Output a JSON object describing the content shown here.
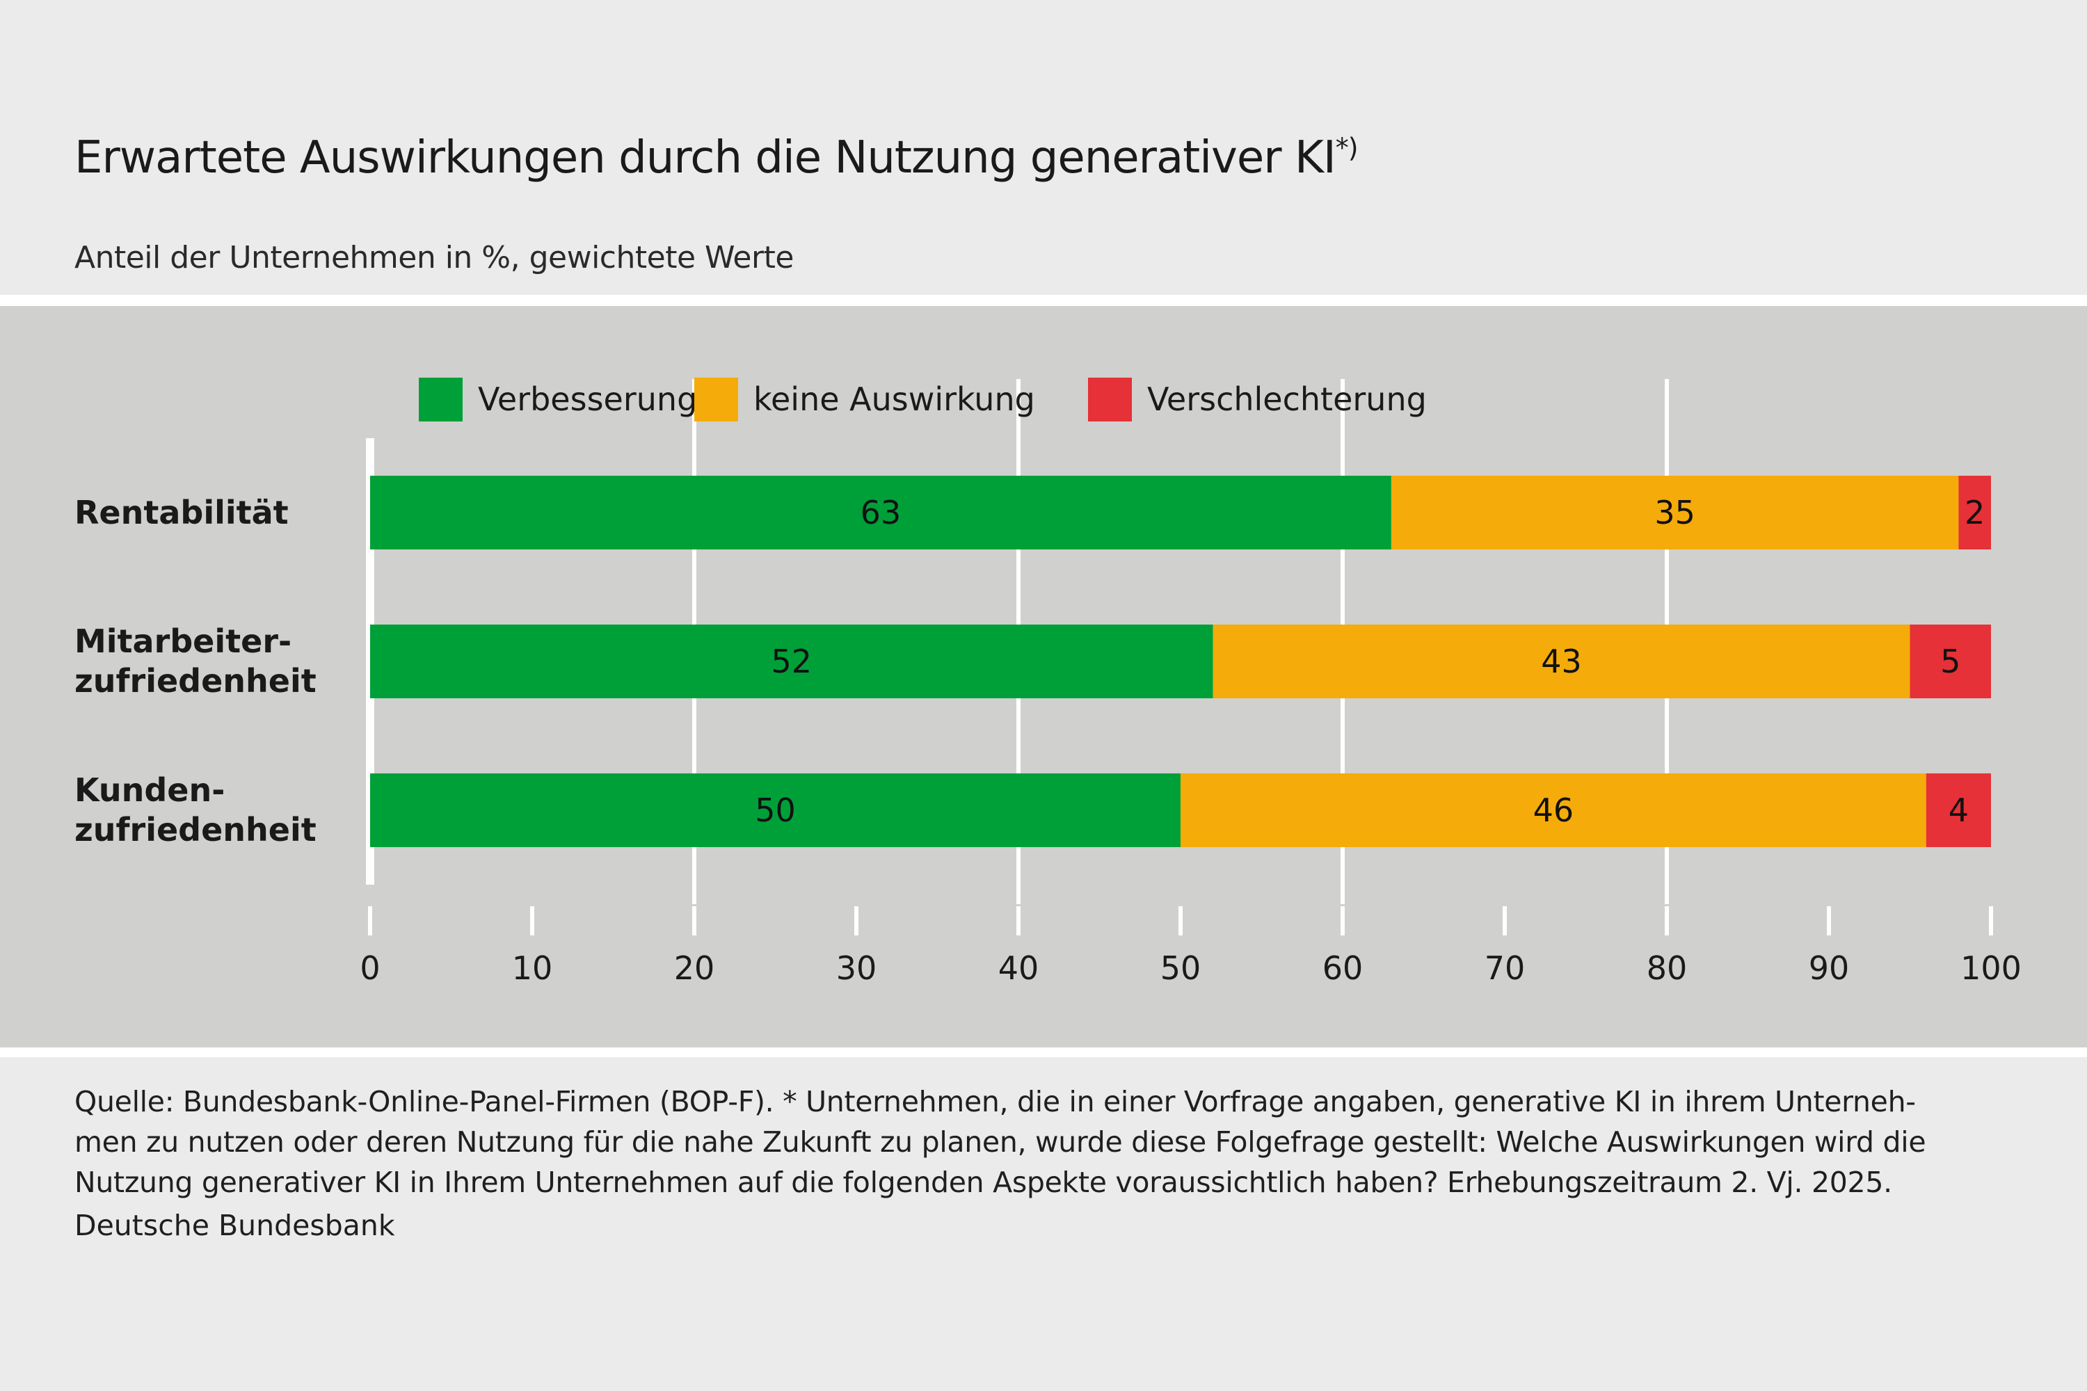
{
  "header": {
    "title": "Erwartete Auswirkungen durch die Nutzung generativer KI",
    "title_footnote_mark": "*)",
    "subtitle": "Anteil der Unternehmen in %, gewichtete Werte"
  },
  "footer": {
    "lines": [
      "Quelle: Bundesbank-Online-Panel-Firmen (BOP-F). * Unternehmen, die in einer Vorfrage angaben, generative KI in ihrem Unterneh-",
      "men zu nutzen oder deren Nutzung für die nahe Zukunft zu planen, wurde diese Folgefrage gestellt: Welche Auswirkungen wird die",
      "Nutzung generativer KI in Ihrem Unternehmen auf die folgenden Aspekte voraussichtlich haben? Erhebungszeitraum 2. Vj. 2025."
    ],
    "organization": "Deutsche Bundesbank"
  },
  "chart_data": {
    "type": "bar",
    "orientation": "horizontal",
    "stacked": true,
    "title": "Erwartete Auswirkungen durch die Nutzung generativer KI*)",
    "subtitle": "Anteil der Unternehmen in %, gewichtete Werte",
    "xlabel": "",
    "ylabel": "",
    "xlim": [
      0,
      100
    ],
    "x_ticks": [
      0,
      10,
      20,
      30,
      40,
      50,
      60,
      70,
      80,
      90,
      100
    ],
    "gridlines_at": [
      20,
      40,
      60,
      80
    ],
    "legend_position": "top",
    "categories": [
      {
        "label_lines": [
          "Rentabilität"
        ]
      },
      {
        "label_lines": [
          "Mitarbeiter-",
          "zufriedenheit"
        ]
      },
      {
        "label_lines": [
          "Kunden-",
          "zufriedenheit"
        ]
      }
    ],
    "series": [
      {
        "name": "Verbesserung",
        "color": "#00a039",
        "values": [
          63,
          52,
          50
        ]
      },
      {
        "name": "keine Auswirkung",
        "color": "#f5ab09",
        "values": [
          35,
          43,
          46
        ]
      },
      {
        "name": "Verschlechterung",
        "color": "#e53137",
        "values": [
          2,
          5,
          4
        ]
      }
    ]
  }
}
